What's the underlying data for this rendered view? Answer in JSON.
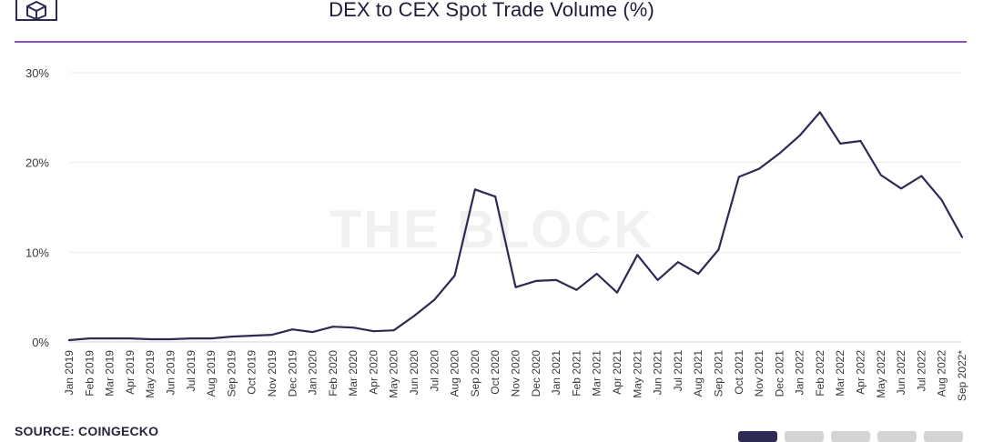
{
  "header": {
    "title": "DEX to CEX Spot Trade Volume (%)",
    "logo_icon": "cube-logo-icon"
  },
  "watermark": "THE BLOCK",
  "footer": {
    "source": "SOURCE: COINGECKO",
    "pager_count": 5,
    "pager_active_index": 0
  },
  "colors": {
    "line": "#2d2a54",
    "rule": "#8e4fc6",
    "grid": "#ececec",
    "pager_active": "#2d2a54",
    "pager_inactive": "#d4d4d4"
  },
  "chart_data": {
    "type": "line",
    "title": "DEX to CEX Spot Trade Volume (%)",
    "xlabel": "",
    "ylabel": "",
    "ylim": [
      0,
      30
    ],
    "yticks": [
      0,
      10,
      20,
      30
    ],
    "ytick_labels": [
      "0%",
      "10%",
      "20%",
      "30%"
    ],
    "grid": true,
    "categories": [
      "Jan 2019",
      "Feb 2019",
      "Mar 2019",
      "Apr 2019",
      "May 2019",
      "Jun 2019",
      "Jul 2019",
      "Aug 2019",
      "Sep 2019",
      "Oct 2019",
      "Nov 2019",
      "Dec 2019",
      "Jan 2020",
      "Feb 2020",
      "Mar 2020",
      "Apr 2020",
      "May 2020",
      "Jun 2020",
      "Jul 2020",
      "Aug 2020",
      "Sep 2020",
      "Oct 2020",
      "Nov 2020",
      "Dec 2020",
      "Jan 2021",
      "Feb 2021",
      "Mar 2021",
      "Apr 2021",
      "May 2021",
      "Jun 2021",
      "Jul 2021",
      "Aug 2021",
      "Sep 2021",
      "Oct 2021",
      "Nov 2021",
      "Dec 2021",
      "Jan 2022",
      "Feb 2022",
      "Mar 2022",
      "Apr 2022",
      "May 2022",
      "Jun 2022",
      "Jul 2022",
      "Aug 2022",
      "Sep 2022*"
    ],
    "series": [
      {
        "values": [
          0.2,
          0.4,
          0.4,
          0.4,
          0.3,
          0.3,
          0.4,
          0.4,
          0.6,
          0.7,
          0.8,
          1.4,
          1.1,
          1.7,
          1.6,
          1.2,
          1.3,
          2.9,
          4.7,
          7.4,
          17.0,
          16.2,
          6.1,
          6.8,
          6.9,
          5.8,
          7.6,
          5.5,
          9.7,
          6.9,
          8.9,
          7.6,
          10.3,
          18.4,
          19.3,
          21.0,
          23.0,
          25.6,
          22.1,
          22.4,
          18.6,
          17.1,
          18.5,
          15.8,
          11.7
        ]
      }
    ]
  }
}
